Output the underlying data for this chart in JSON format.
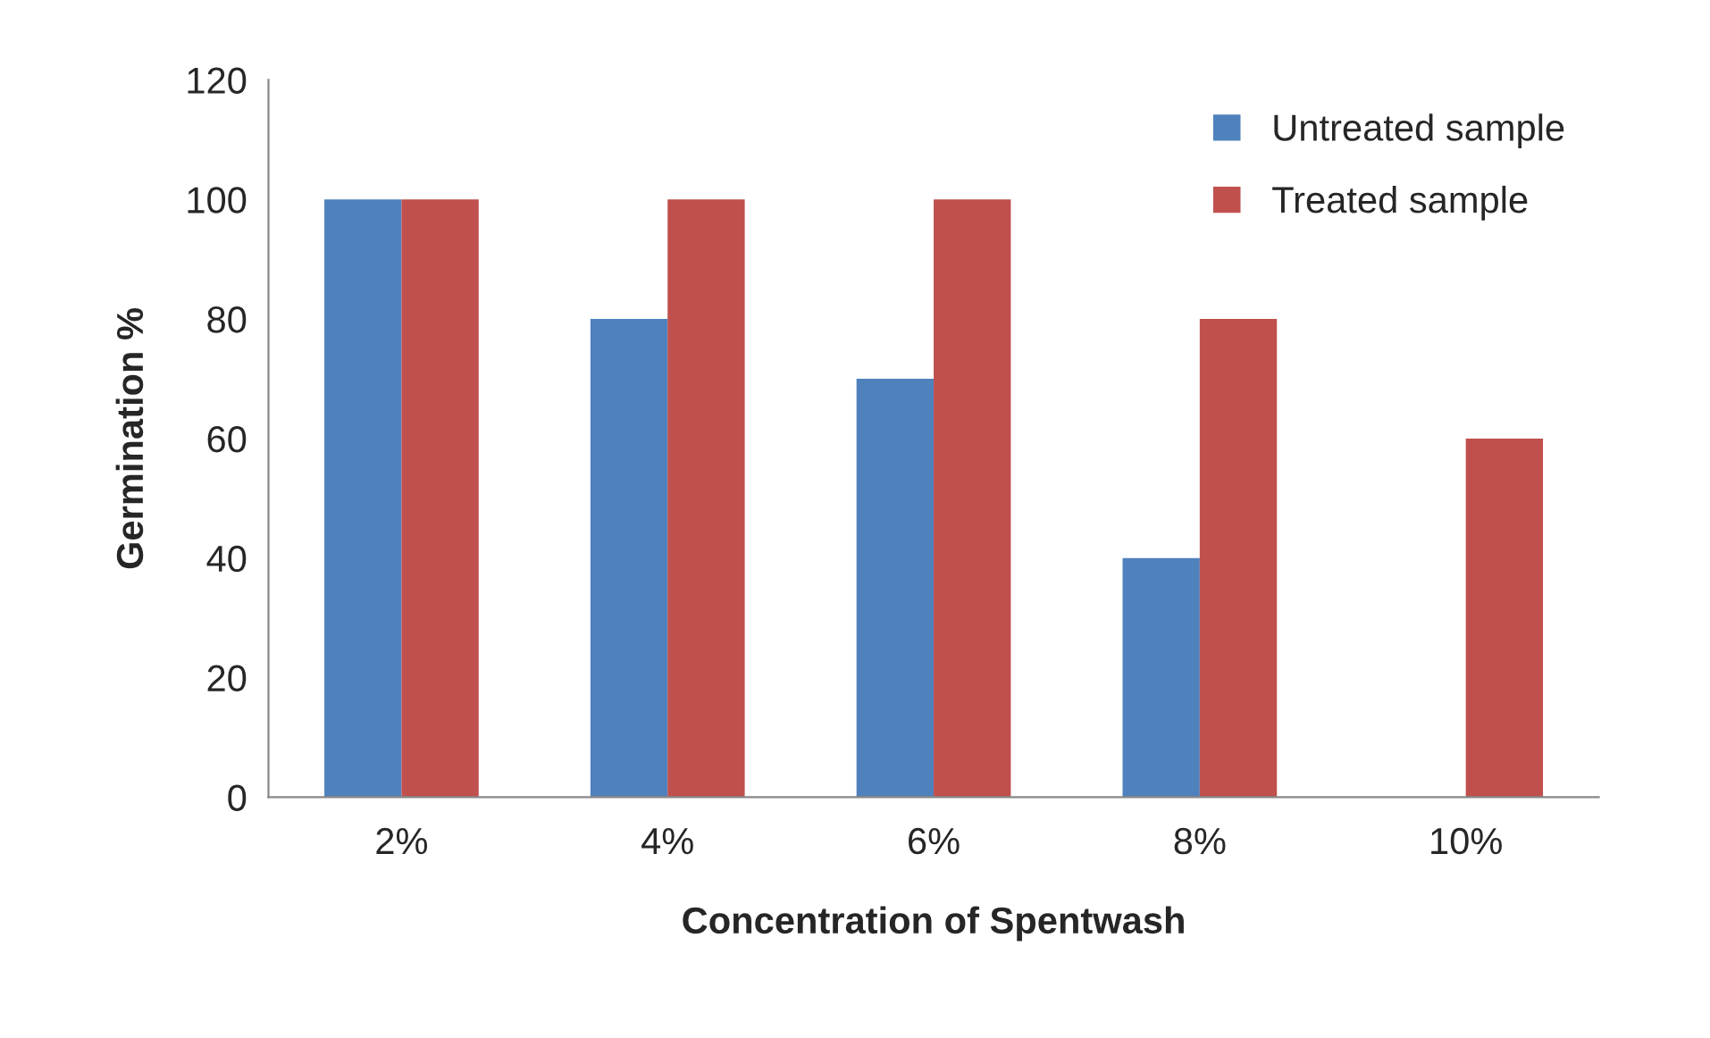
{
  "chart_data": {
    "type": "bar",
    "xlabel": "Concentration of Spentwash",
    "ylabel": "Germination %",
    "categories": [
      "2%",
      "4%",
      "6%",
      "8%",
      "10%"
    ],
    "series": [
      {
        "name": "Untreated sample",
        "color": "#4f81bd",
        "values": [
          100,
          80,
          70,
          40,
          null
        ]
      },
      {
        "name": "Treated sample",
        "color": "#c0504d",
        "values": [
          100,
          100,
          100,
          80,
          60
        ]
      }
    ],
    "ylim": [
      0,
      120
    ],
    "yticks": [
      0,
      20,
      40,
      60,
      80,
      100,
      120
    ],
    "grid": false,
    "legend": "top right"
  }
}
